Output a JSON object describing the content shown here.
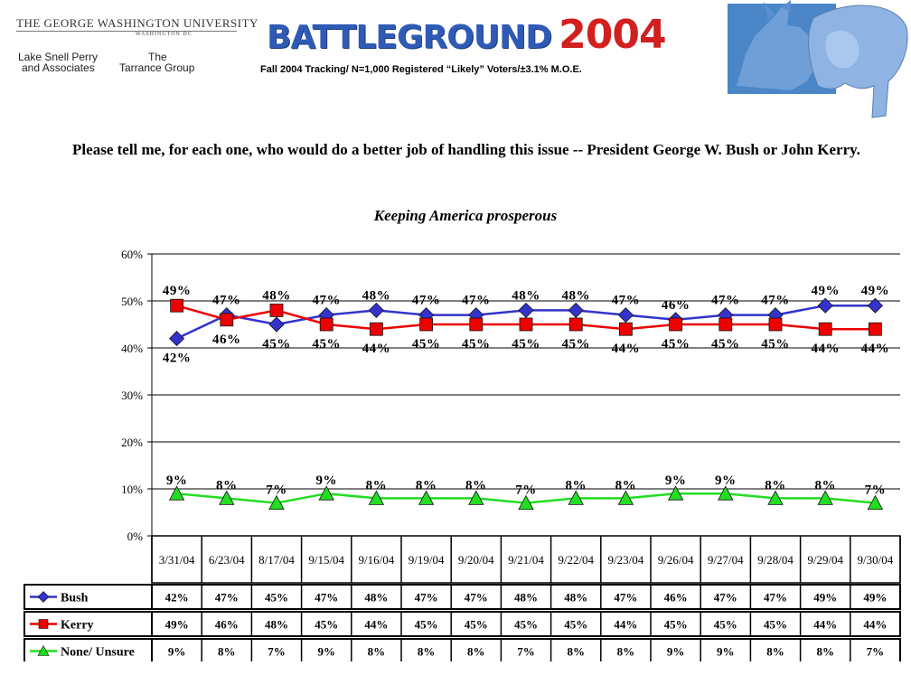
{
  "header": {
    "university": "THE GEORGE WASHINGTON UNIVERSITY",
    "university_sub": "WASHINGTON DC",
    "firm1_line1": "Lake Snell Perry",
    "firm1_line2": "and Associates",
    "firm2_line1": "The",
    "firm2_line2": "Tarrance Group",
    "logo_word": "BATTLEGROUND",
    "logo_year": "2004",
    "subtitle": "Fall 2004 Tracking/ N=1,000 Registered “Likely” Voters/±3.1% M.O.E."
  },
  "question": "Please tell me, for each one, who would do a better job of handling this issue  --  President George W. Bush or John Kerry.",
  "topic": "Keeping America prosperous",
  "colors": {
    "bush": "#3333cc",
    "kerry": "#ee0000",
    "none": "#22dd22",
    "grid": "#000000"
  },
  "chart_data": {
    "type": "line",
    "title": "Keeping America prosperous",
    "categories": [
      "3/31/04",
      "6/23/04",
      "8/17/04",
      "9/15/04",
      "9/16/04",
      "9/19/04",
      "9/20/04",
      "9/21/04",
      "9/22/04",
      "9/23/04",
      "9/26/04",
      "9/27/04",
      "9/28/04",
      "9/29/04",
      "9/30/04"
    ],
    "yticks": [
      "0%",
      "10%",
      "20%",
      "30%",
      "40%",
      "50%",
      "60%"
    ],
    "ylim": [
      0,
      60
    ],
    "grid": true,
    "series": [
      {
        "name": "Bush",
        "marker": "diamond",
        "color": "#3333cc",
        "values": [
          42,
          47,
          45,
          47,
          48,
          47,
          47,
          48,
          48,
          47,
          46,
          47,
          47,
          49,
          49
        ],
        "labels": [
          "42%",
          "47%",
          "45%",
          "47%",
          "48%",
          "47%",
          "47%",
          "48%",
          "48%",
          "47%",
          "46%",
          "47%",
          "47%",
          "49%",
          "49%"
        ]
      },
      {
        "name": "Kerry",
        "marker": "square",
        "color": "#ee0000",
        "values": [
          49,
          46,
          48,
          45,
          44,
          45,
          45,
          45,
          45,
          44,
          45,
          45,
          45,
          44,
          44
        ],
        "labels": [
          "49%",
          "46%",
          "48%",
          "45%",
          "44%",
          "45%",
          "45%",
          "45%",
          "45%",
          "44%",
          "45%",
          "45%",
          "45%",
          "44%",
          "44%"
        ]
      },
      {
        "name": "None/ Unsure",
        "marker": "triangle",
        "color": "#22dd22",
        "values": [
          9,
          8,
          7,
          9,
          8,
          8,
          8,
          7,
          8,
          8,
          9,
          9,
          8,
          8,
          7
        ],
        "labels": [
          "9%",
          "8%",
          "7%",
          "9%",
          "8%",
          "8%",
          "8%",
          "7%",
          "8%",
          "8%",
          "9%",
          "9%",
          "8%",
          "8%",
          "7%"
        ]
      }
    ]
  }
}
